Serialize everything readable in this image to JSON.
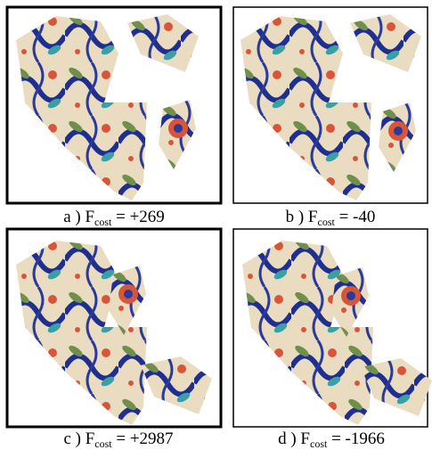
{
  "panels": [
    {
      "label": "a )",
      "symbol": "F",
      "subscript": "cost",
      "value": "= +269"
    },
    {
      "label": "b )",
      "symbol": "F",
      "subscript": "cost",
      "value": "= -40"
    },
    {
      "label": "c )",
      "symbol": "F",
      "subscript": "cost",
      "value": "= +2987"
    },
    {
      "label": "d )",
      "symbol": "F",
      "subscript": "cost",
      "value": "= -1966"
    }
  ]
}
